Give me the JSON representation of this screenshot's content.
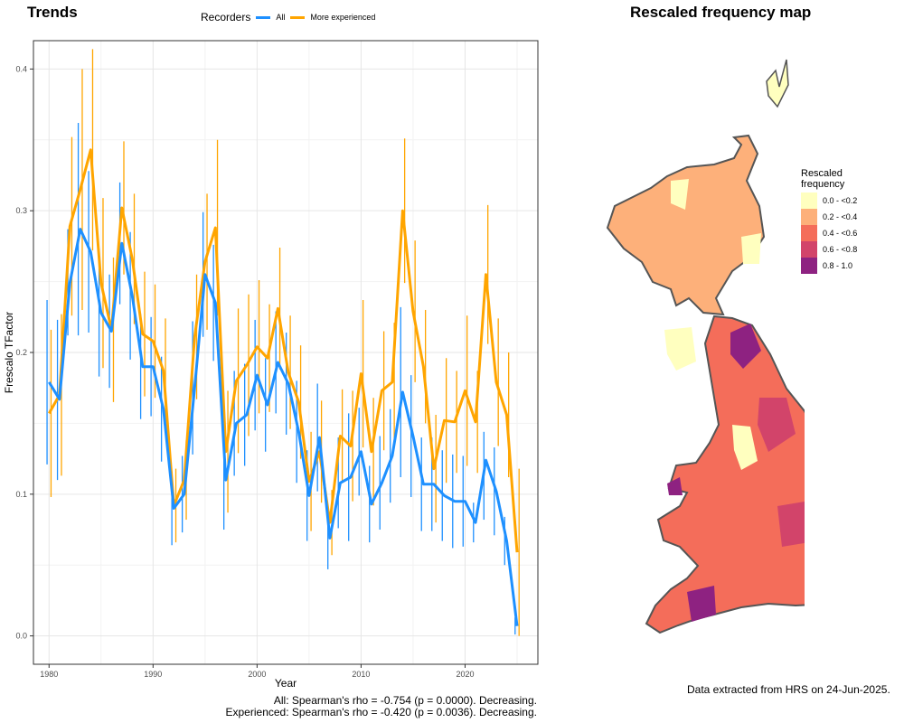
{
  "trends_title": "Trends",
  "map_title": "Rescaled frequency map",
  "legend": {
    "title": "Recorders",
    "items": [
      {
        "label": "All",
        "color": "#1E90FF"
      },
      {
        "label": "More experienced",
        "color": "#FFA500"
      }
    ]
  },
  "chart_data": {
    "type": "line",
    "xlabel": "Year",
    "ylabel": "Frescalo TFactor",
    "xlim": [
      1978.5,
      2027
    ],
    "ylim": [
      -0.02,
      0.42
    ],
    "xticks": [
      1980,
      1990,
      2000,
      2010,
      2020
    ],
    "yticks": [
      0.0,
      0.1,
      0.2,
      0.3,
      0.4
    ],
    "ytick_labels": [
      "0.0",
      "0.1",
      "0.2",
      "0.3",
      "0.4"
    ],
    "grid": true,
    "legend_position": "top",
    "x": [
      1980,
      1981,
      1982,
      1983,
      1984,
      1985,
      1986,
      1987,
      1988,
      1989,
      1990,
      1991,
      1992,
      1993,
      1994,
      1995,
      1996,
      1997,
      1998,
      1999,
      2000,
      2001,
      2002,
      2003,
      2004,
      2005,
      2006,
      2007,
      2008,
      2009,
      2010,
      2011,
      2012,
      2013,
      2014,
      2015,
      2016,
      2017,
      2018,
      2019,
      2020,
      2021,
      2022,
      2023,
      2024,
      2025
    ],
    "series": [
      {
        "name": "All",
        "color": "#1E90FF",
        "values": [
          0.179,
          0.167,
          0.249,
          0.287,
          0.271,
          0.228,
          0.215,
          0.277,
          0.24,
          0.19,
          0.19,
          0.16,
          0.09,
          0.1,
          0.175,
          0.255,
          0.235,
          0.11,
          0.15,
          0.156,
          0.184,
          0.163,
          0.193,
          0.178,
          0.144,
          0.099,
          0.14,
          0.069,
          0.108,
          0.112,
          0.13,
          0.093,
          0.108,
          0.127,
          0.172,
          0.141,
          0.107,
          0.107,
          0.099,
          0.095,
          0.095,
          0.08,
          0.124,
          0.102,
          0.067,
          0.007
        ],
        "lower": [
          0.121,
          0.11,
          0.212,
          0.212,
          0.214,
          0.183,
          0.175,
          0.234,
          0.195,
          0.153,
          0.155,
          0.123,
          0.064,
          0.073,
          0.128,
          0.211,
          0.194,
          0.075,
          0.113,
          0.12,
          0.145,
          0.13,
          0.157,
          0.142,
          0.108,
          0.067,
          0.102,
          0.047,
          0.076,
          0.067,
          0.099,
          0.066,
          0.075,
          0.094,
          0.112,
          0.098,
          0.074,
          0.074,
          0.067,
          0.062,
          0.063,
          0.066,
          0.082,
          0.071,
          0.05,
          0.001
        ],
        "upper": [
          0.237,
          0.223,
          0.287,
          0.362,
          0.328,
          0.273,
          0.255,
          0.32,
          0.285,
          0.227,
          0.225,
          0.197,
          0.116,
          0.127,
          0.222,
          0.299,
          0.276,
          0.145,
          0.187,
          0.192,
          0.223,
          0.196,
          0.229,
          0.214,
          0.18,
          0.131,
          0.178,
          0.091,
          0.14,
          0.157,
          0.161,
          0.12,
          0.141,
          0.16,
          0.232,
          0.184,
          0.14,
          0.14,
          0.131,
          0.128,
          0.127,
          0.094,
          0.144,
          0.133,
          0.084,
          0.013
        ]
      },
      {
        "name": "More experienced",
        "color": "#FFA500",
        "values": [
          0.157,
          0.17,
          0.289,
          0.315,
          0.343,
          0.249,
          0.216,
          0.302,
          0.266,
          0.213,
          0.208,
          0.187,
          0.092,
          0.11,
          0.211,
          0.264,
          0.288,
          0.13,
          0.18,
          0.191,
          0.204,
          0.196,
          0.231,
          0.186,
          0.165,
          0.109,
          0.13,
          0.08,
          0.141,
          0.134,
          0.185,
          0.13,
          0.173,
          0.179,
          0.3,
          0.229,
          0.19,
          0.118,
          0.152,
          0.151,
          0.173,
          0.151,
          0.255,
          0.179,
          0.156,
          0.059
        ],
        "lower": [
          0.098,
          0.113,
          0.226,
          0.23,
          0.272,
          0.189,
          0.165,
          0.255,
          0.22,
          0.169,
          0.168,
          0.15,
          0.066,
          0.082,
          0.167,
          0.216,
          0.226,
          0.087,
          0.129,
          0.141,
          0.157,
          0.158,
          0.188,
          0.146,
          0.125,
          0.074,
          0.094,
          0.057,
          0.108,
          0.095,
          0.133,
          0.092,
          0.131,
          0.137,
          0.249,
          0.179,
          0.15,
          0.08,
          0.108,
          0.115,
          0.12,
          0.115,
          0.206,
          0.134,
          0.112,
          0.0
        ],
        "upper": [
          0.216,
          0.227,
          0.352,
          0.4,
          0.414,
          0.309,
          0.267,
          0.349,
          0.312,
          0.257,
          0.248,
          0.224,
          0.118,
          0.138,
          0.255,
          0.312,
          0.35,
          0.173,
          0.231,
          0.241,
          0.251,
          0.234,
          0.274,
          0.226,
          0.205,
          0.144,
          0.166,
          0.103,
          0.174,
          0.173,
          0.237,
          0.168,
          0.215,
          0.221,
          0.351,
          0.279,
          0.23,
          0.156,
          0.196,
          0.187,
          0.226,
          0.187,
          0.304,
          0.224,
          0.2,
          0.118
        ]
      }
    ]
  },
  "stats": {
    "all": "All: Spearman's rho = -0.754 (p = 0.0000). Decreasing.",
    "experienced": "Experienced: Spearman's rho = -0.420 (p = 0.0036). Decreasing."
  },
  "source_note": "Data extracted from HRS on 24-Jun-2025.",
  "map_legend": {
    "title_line1": "Rescaled",
    "title_line2": "frequency",
    "bins": [
      {
        "label": "0.0 - <0.2",
        "color": "#FFFFBF"
      },
      {
        "label": "0.2 - <0.4",
        "color": "#FDB07A"
      },
      {
        "label": "0.4 - <0.6",
        "color": "#F46D5A"
      },
      {
        "label": "0.6 - <0.8",
        "color": "#D2446A"
      },
      {
        "label": "0.8 - 1.0",
        "color": "#8E2281"
      }
    ]
  }
}
